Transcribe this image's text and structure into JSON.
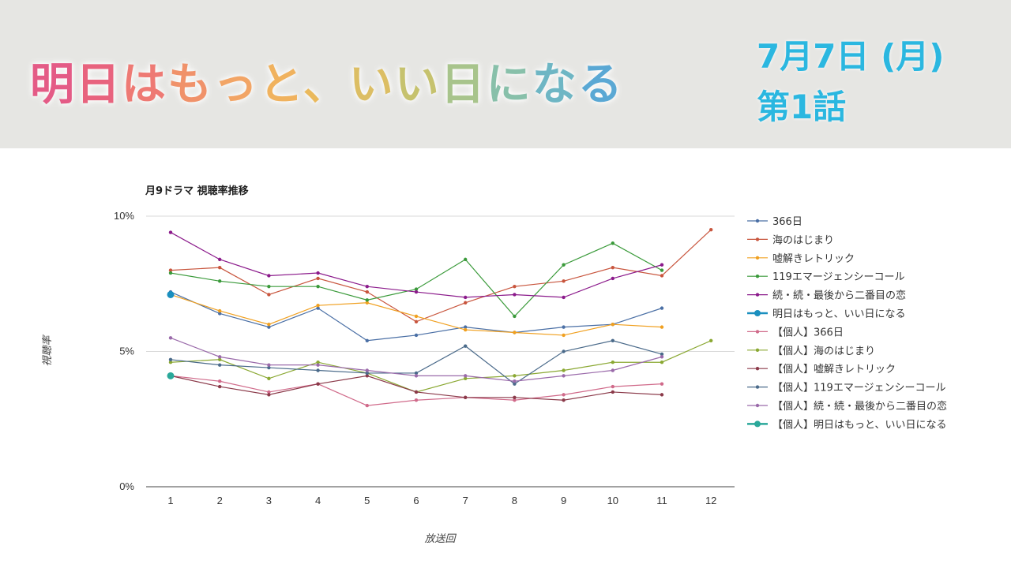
{
  "header": {
    "title": "明日はもっと、いい日になる",
    "title_colors": [
      "#e45b86",
      "#e8637e",
      "#ee7a74",
      "#f0926a",
      "#f2a566",
      "#f0b25e",
      "#eab95c",
      "#dcbe64",
      "#c6c26e",
      "#a8c48c",
      "#88c0aa",
      "#6eb6c4",
      "#5aa8d4"
    ],
    "air_date": "7月7日 (月)",
    "episode": "第1話",
    "accent_color": "#2bb7e0"
  },
  "chart_data": {
    "type": "line",
    "title": "月9ドラマ 視聴率推移",
    "xlabel": "放送回",
    "ylabel": "視聴率",
    "x": [
      1,
      2,
      3,
      4,
      5,
      6,
      7,
      8,
      9,
      10,
      11,
      12
    ],
    "ylim": [
      0,
      10
    ],
    "yticks": [
      "0%",
      "5%",
      "10%"
    ],
    "grid": true,
    "legend_position": "right",
    "series": [
      {
        "name": "366日",
        "color": "#4a6fa5",
        "values": [
          7.2,
          6.4,
          5.9,
          6.6,
          5.4,
          5.6,
          5.9,
          5.7,
          5.9,
          6.0,
          6.6,
          null
        ]
      },
      {
        "name": "海のはじまり",
        "color": "#c8553d",
        "values": [
          8.0,
          8.1,
          7.1,
          7.7,
          7.2,
          6.1,
          6.8,
          7.4,
          7.6,
          8.1,
          7.8,
          9.5
        ]
      },
      {
        "name": "嘘解きレトリック",
        "color": "#f0a020",
        "values": [
          7.1,
          6.5,
          6.0,
          6.7,
          6.8,
          6.3,
          5.8,
          5.7,
          5.6,
          6.0,
          5.9,
          null
        ]
      },
      {
        "name": "119エマージェンシーコール",
        "color": "#3a9a3a",
        "values": [
          7.9,
          7.6,
          7.4,
          7.4,
          6.9,
          7.3,
          8.4,
          6.3,
          8.2,
          9.0,
          8.0,
          null
        ]
      },
      {
        "name": "続・続・最後から二番目の恋",
        "color": "#8b1a8b",
        "values": [
          9.4,
          8.4,
          7.8,
          7.9,
          7.4,
          7.2,
          7.0,
          7.1,
          7.0,
          7.7,
          8.2,
          null
        ]
      },
      {
        "name": "明日はもっと、いい日になる",
        "color": "#1a8fbf",
        "values": [
          7.1,
          null,
          null,
          null,
          null,
          null,
          null,
          null,
          null,
          null,
          null,
          null
        ]
      },
      {
        "name": "【個人】366日",
        "color": "#d06a8a",
        "values": [
          4.1,
          3.9,
          3.5,
          3.8,
          3.0,
          3.2,
          3.3,
          3.2,
          3.4,
          3.7,
          3.8,
          null
        ]
      },
      {
        "name": "【個人】海のはじまり",
        "color": "#8aa832",
        "values": [
          4.6,
          4.7,
          4.0,
          4.6,
          4.2,
          3.5,
          4.0,
          4.1,
          4.3,
          4.6,
          4.6,
          5.4
        ]
      },
      {
        "name": "【個人】嘘解きレトリック",
        "color": "#8b3a4a",
        "values": [
          4.1,
          3.7,
          3.4,
          3.8,
          4.1,
          3.5,
          3.3,
          3.3,
          3.2,
          3.5,
          3.4,
          null
        ]
      },
      {
        "name": "【個人】119エマージェンシーコール",
        "color": "#4a6a8a",
        "values": [
          4.7,
          4.5,
          4.4,
          4.3,
          4.2,
          4.2,
          5.2,
          3.8,
          5.0,
          5.4,
          4.9,
          null
        ]
      },
      {
        "name": "【個人】続・続・最後から二番目の恋",
        "color": "#9a6aaa",
        "values": [
          5.5,
          4.8,
          4.5,
          4.5,
          4.3,
          4.1,
          4.1,
          3.9,
          4.1,
          4.3,
          4.8,
          null
        ]
      },
      {
        "name": "【個人】明日はもっと、いい日になる",
        "color": "#2aa89a",
        "values": [
          4.1,
          null,
          null,
          null,
          null,
          null,
          null,
          null,
          null,
          null,
          null,
          null
        ]
      }
    ]
  }
}
